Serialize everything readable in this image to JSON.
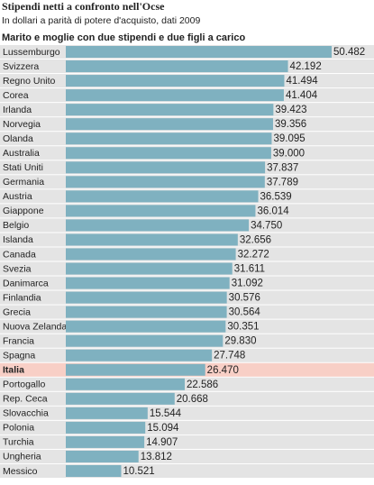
{
  "chart_data": {
    "type": "bar",
    "orientation": "horizontal",
    "title": "Stipendi netti a confronto nell'Ocse",
    "subtitle": "In dollari a parità di potere d'acquisto, dati 2009",
    "header": "Marito e moglie con due stipendi e due figli a carico",
    "categories": [
      "Lussemburgo",
      "Svizzera",
      "Regno Unito",
      "Corea",
      "Irlanda",
      "Norvegia",
      "Olanda",
      "Australia",
      "Stati Uniti",
      "Germania",
      "Austria",
      "Giappone",
      "Belgio",
      "Islanda",
      "Canada",
      "Svezia",
      "Danimarca",
      "Finlandia",
      "Grecia",
      "Nuova Zelanda",
      "Francia",
      "Spagna",
      "Italia",
      "Portogallo",
      "Rep. Ceca",
      "Slovacchia",
      "Polonia",
      "Turchia",
      "Ungheria",
      "Messico"
    ],
    "values": [
      50482,
      42192,
      41494,
      41404,
      39423,
      39356,
      39095,
      39000,
      37837,
      37789,
      36539,
      36014,
      34750,
      32656,
      32272,
      31611,
      31092,
      30576,
      30564,
      30351,
      29830,
      27748,
      26470,
      22586,
      20668,
      15544,
      15094,
      14907,
      13812,
      10521
    ],
    "value_labels": [
      "50.482",
      "42.192",
      "41.494",
      "41.404",
      "39.423",
      "39.356",
      "39.095",
      "39.000",
      "37.837",
      "37.789",
      "36.539",
      "36.014",
      "34.750",
      "32.656",
      "32.272",
      "31.611",
      "31.092",
      "30.576",
      "30.564",
      "30.351",
      "29.830",
      "27.748",
      "26.470",
      "22.586",
      "20.668",
      "15.544",
      "15.094",
      "14.907",
      "13.812",
      "10.521"
    ],
    "color": "#7fb1c0",
    "row_color": "#e4e4e4",
    "highlight": "Italia",
    "highlight_row_color": "#f8cfc6",
    "highlight_text_color": "#e03a32"
  }
}
